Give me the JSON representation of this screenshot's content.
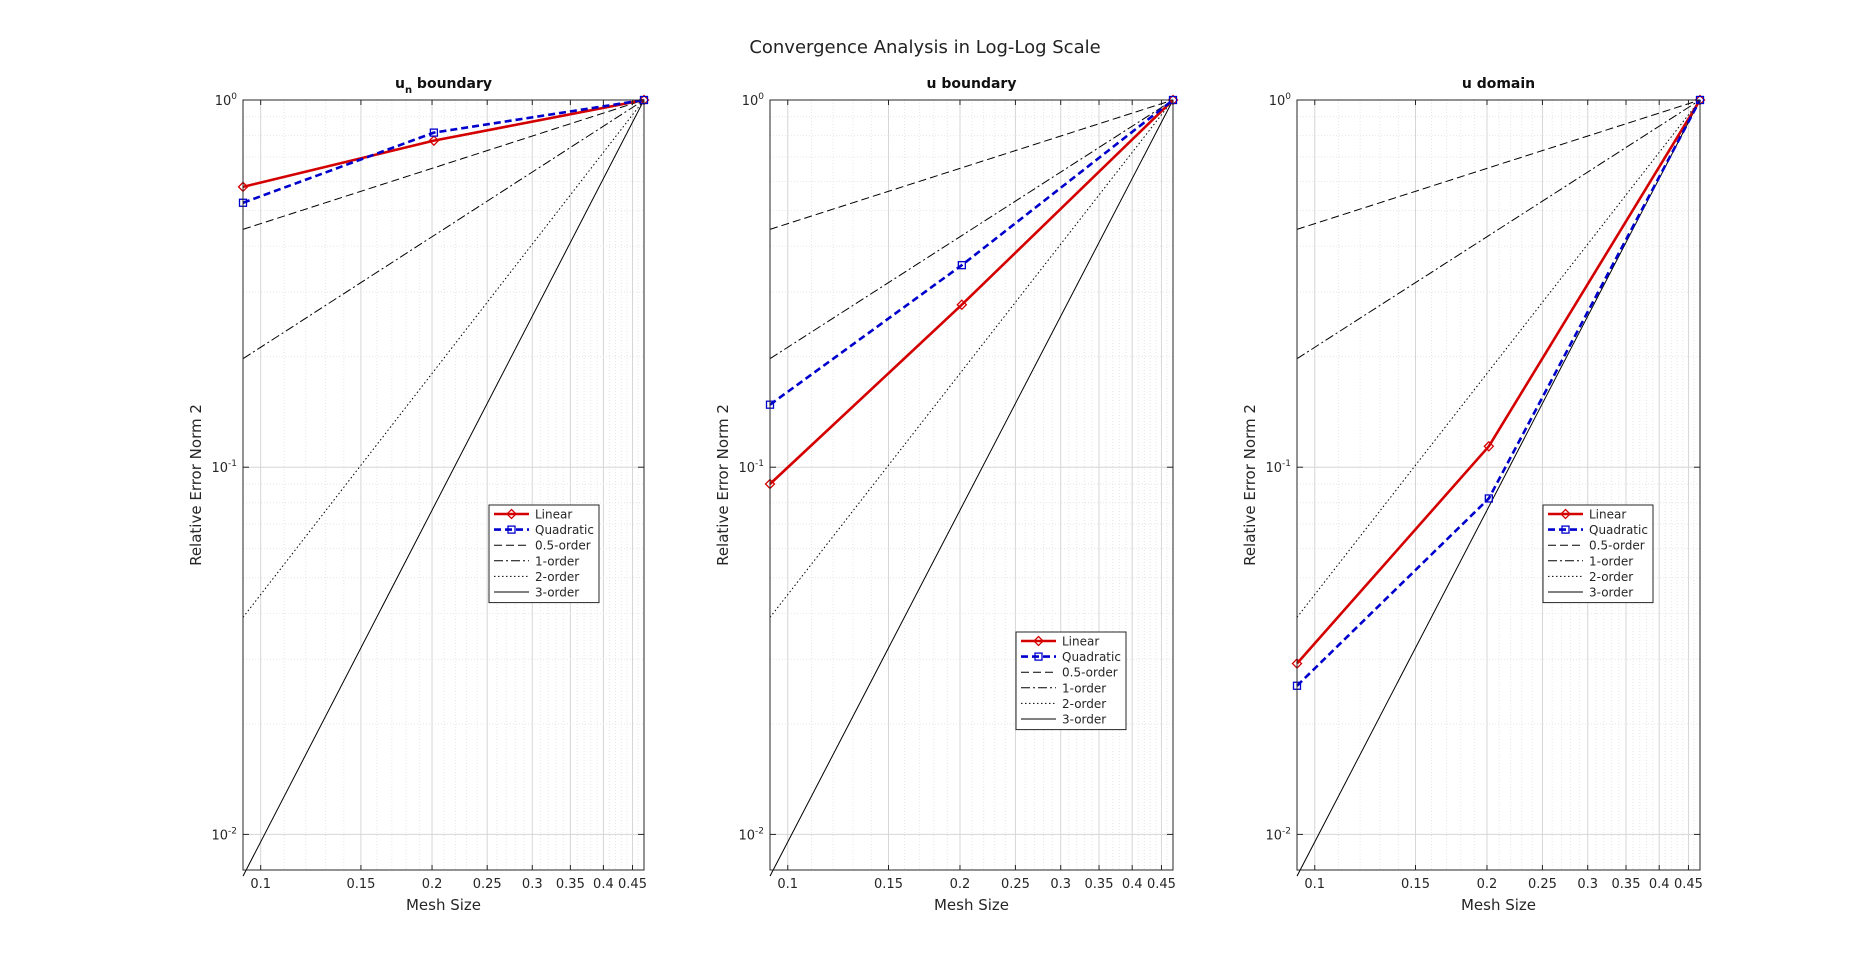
{
  "figure": {
    "title": "Convergence Analysis in Log-Log Scale"
  },
  "colors": {
    "linear": "#d40000",
    "quadratic": "#0000cc",
    "reference": "#000000",
    "grid": "#dddddd"
  },
  "chart_data": [
    {
      "type": "line",
      "title": "u_n boundary",
      "title_main": "u",
      "title_sub": "n",
      "title_rest": " boundary",
      "xlabel": "Mesh Size",
      "ylabel": "Relative Error Norm 2",
      "xscale": "log",
      "yscale": "log",
      "xlim": [
        0.0931,
        0.4714
      ],
      "ylim": [
        0.008,
        1.0
      ],
      "x_ticks": [
        "0.1",
        "0.15",
        "0.2",
        "0.25",
        "0.3",
        "0.35",
        "0.4",
        "0.45"
      ],
      "y_ticks": [
        {
          "base": "10",
          "exp": "-2"
        },
        {
          "base": "10",
          "exp": "-1"
        },
        {
          "base": "10",
          "exp": "0"
        }
      ],
      "grid": true,
      "minor_grid": true,
      "legend_position": "right-middle",
      "series": [
        {
          "name": "Linear",
          "x": [
            0.0931,
            0.2015,
            0.4714
          ],
          "y": [
            0.58,
            0.775,
            1.0
          ]
        },
        {
          "name": "Quadratic",
          "x": [
            0.0931,
            0.2015,
            0.4714
          ],
          "y": [
            0.525,
            0.815,
            1.0
          ]
        },
        {
          "name": "0.5-order",
          "x": [
            0.0931,
            0.4714
          ],
          "y": [
            0.4444,
            1.0
          ]
        },
        {
          "name": "1-order",
          "x": [
            0.0931,
            0.4714
          ],
          "y": [
            0.1975,
            1.0
          ]
        },
        {
          "name": "2-order",
          "x": [
            0.0931,
            0.4714
          ],
          "y": [
            0.039,
            1.0
          ]
        },
        {
          "name": "3-order",
          "x": [
            0.0931,
            0.4714
          ],
          "y": [
            0.0077,
            1.0
          ]
        }
      ]
    },
    {
      "type": "line",
      "title": "u boundary",
      "title_main": "u boundary",
      "title_sub": "",
      "title_rest": "",
      "xlabel": "Mesh Size",
      "ylabel": "Relative Error Norm 2",
      "xscale": "log",
      "yscale": "log",
      "xlim": [
        0.0931,
        0.4714
      ],
      "ylim": [
        0.008,
        1.0
      ],
      "x_ticks": [
        "0.1",
        "0.15",
        "0.2",
        "0.25",
        "0.3",
        "0.35",
        "0.4",
        "0.45"
      ],
      "y_ticks": [
        {
          "base": "10",
          "exp": "-2"
        },
        {
          "base": "10",
          "exp": "-1"
        },
        {
          "base": "10",
          "exp": "0"
        }
      ],
      "grid": true,
      "minor_grid": true,
      "legend_position": "bottom-right",
      "series": [
        {
          "name": "Linear",
          "x": [
            0.0931,
            0.2015,
            0.4714
          ],
          "y": [
            0.09,
            0.277,
            1.0
          ]
        },
        {
          "name": "Quadratic",
          "x": [
            0.0931,
            0.2015,
            0.4714
          ],
          "y": [
            0.148,
            0.355,
            1.0
          ]
        },
        {
          "name": "0.5-order",
          "x": [
            0.0931,
            0.4714
          ],
          "y": [
            0.4444,
            1.0
          ]
        },
        {
          "name": "1-order",
          "x": [
            0.0931,
            0.4714
          ],
          "y": [
            0.1975,
            1.0
          ]
        },
        {
          "name": "2-order",
          "x": [
            0.0931,
            0.4714
          ],
          "y": [
            0.039,
            1.0
          ]
        },
        {
          "name": "3-order",
          "x": [
            0.0931,
            0.4714
          ],
          "y": [
            0.0077,
            1.0
          ]
        }
      ]
    },
    {
      "type": "line",
      "title": "u domain",
      "title_main": "u domain",
      "title_sub": "",
      "title_rest": "",
      "xlabel": "Mesh Size",
      "ylabel": "Relative Error Norm 2",
      "xscale": "log",
      "yscale": "log",
      "xlim": [
        0.0931,
        0.4714
      ],
      "ylim": [
        0.008,
        1.0
      ],
      "x_ticks": [
        "0.1",
        "0.15",
        "0.2",
        "0.25",
        "0.3",
        "0.35",
        "0.4",
        "0.45"
      ],
      "y_ticks": [
        {
          "base": "10",
          "exp": "-2"
        },
        {
          "base": "10",
          "exp": "-1"
        },
        {
          "base": "10",
          "exp": "0"
        }
      ],
      "grid": true,
      "minor_grid": true,
      "legend_position": "right-middle",
      "series": [
        {
          "name": "Linear",
          "x": [
            0.0931,
            0.2015,
            0.4714
          ],
          "y": [
            0.0292,
            0.114,
            1.0
          ]
        },
        {
          "name": "Quadratic",
          "x": [
            0.0931,
            0.2015,
            0.4714
          ],
          "y": [
            0.0254,
            0.0822,
            1.0
          ]
        },
        {
          "name": "0.5-order",
          "x": [
            0.0931,
            0.4714
          ],
          "y": [
            0.4444,
            1.0
          ]
        },
        {
          "name": "1-order",
          "x": [
            0.0931,
            0.4714
          ],
          "y": [
            0.1975,
            1.0
          ]
        },
        {
          "name": "2-order",
          "x": [
            0.0931,
            0.4714
          ],
          "y": [
            0.039,
            1.0
          ]
        },
        {
          "name": "3-order",
          "x": [
            0.0931,
            0.4714
          ],
          "y": [
            0.0077,
            1.0
          ]
        }
      ]
    }
  ]
}
